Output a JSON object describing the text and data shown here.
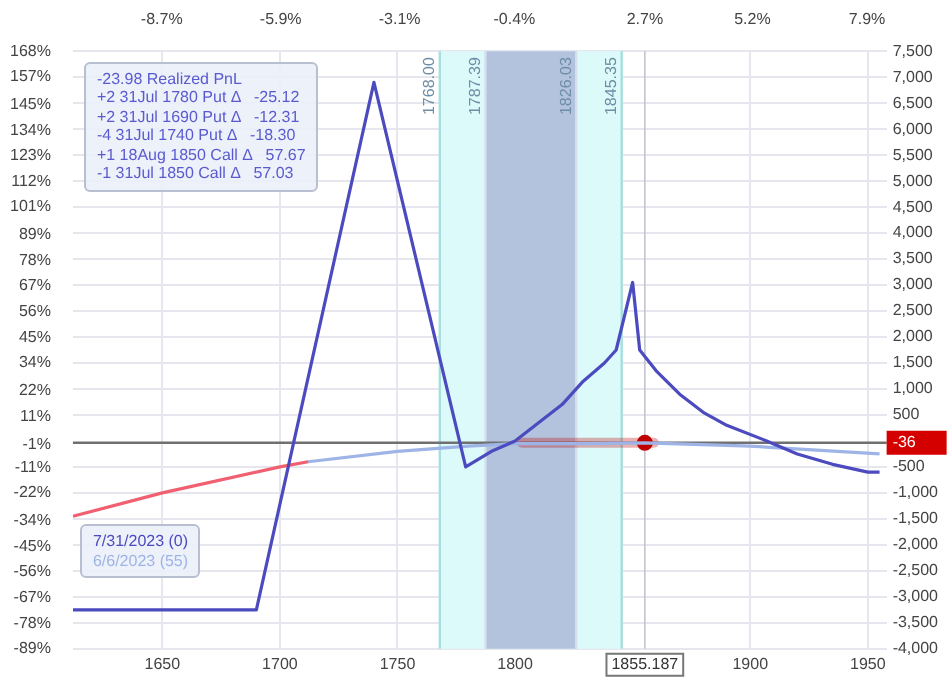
{
  "chart_data": {
    "type": "line",
    "annotations": [
      "-23.98 Realized PnL",
      "+2 31Jul 1780 Put Δ   -25.12",
      "+2 31Jul 1690 Put Δ   -12.31",
      "-4 31Jul 1740 Put Δ   -18.30",
      "+1 18Aug 1850 Call Δ   57.67",
      "-1 31Jul 1850 Call Δ   57.03"
    ],
    "series": [
      {
        "name": "7/31/2023 (0)",
        "color": "#4b4bbf",
        "axis": "y2",
        "x": [
          1612,
          1690,
          1740,
          1779,
          1790,
          1800,
          1810,
          1820,
          1829,
          1838,
          1843,
          1850,
          1853,
          1860,
          1870,
          1880,
          1890,
          1907,
          1920,
          1935,
          1950,
          1955
        ],
        "values": [
          -3250,
          -3250,
          6900,
          -500,
          -200,
          0,
          350,
          700,
          1150,
          1500,
          1750,
          3050,
          1750,
          1350,
          900,
          550,
          300,
          0,
          -250,
          -450,
          -600,
          -600
        ]
      },
      {
        "color": "#f06070",
        "axis": "y2",
        "x": [
          1612,
          1650,
          1700,
          1712
        ],
        "values": [
          -1450,
          -1000,
          -500,
          -400
        ]
      },
      {
        "name": "6/6/2023 (55)",
        "color": "#9fb4e6",
        "axis": "y2",
        "x": [
          1712,
          1750,
          1780,
          1800,
          1830,
          1855.187,
          1900,
          1955
        ],
        "values": [
          -400,
          -200,
          -100,
          -50,
          -50,
          -36,
          -100,
          -250
        ]
      },
      {
        "type": "scatter",
        "color": "#c00000",
        "axis": "y2",
        "x": [
          1855.187
        ],
        "values": [
          -36
        ],
        "xerrors": [
          [
            1803,
            1859
          ]
        ]
      }
    ],
    "xlim": [
      1612,
      1958
    ],
    "xticks": [
      1650,
      1700,
      1750,
      1800,
      1900,
      1950
    ],
    "x2lim": [
      -10.79,
      8.36
    ],
    "x2ticks": [
      {
        "value": -8.7,
        "label": "-8.7%"
      },
      {
        "value": -5.9,
        "label": "-5.9%"
      },
      {
        "value": -3.1,
        "label": "-3.1%"
      },
      {
        "value": -0.4,
        "label": "-0.4%"
      },
      {
        "value": 2.67,
        "label": "2.7%"
      },
      {
        "value": 5.2,
        "label": "5.2%"
      },
      {
        "value": 7.9,
        "label": "7.9%"
      }
    ],
    "ylim": [
      -89,
      168
    ],
    "yticks": [
      {
        "value": 168,
        "label": "168%"
      },
      {
        "value": 157,
        "label": "157%"
      },
      {
        "value": 145,
        "label": "145%"
      },
      {
        "value": 134,
        "label": "134%"
      },
      {
        "value": 123,
        "label": "123%"
      },
      {
        "value": 112,
        "label": "112%"
      },
      {
        "value": 101,
        "label": "101%"
      },
      {
        "value": 89,
        "label": "89%"
      },
      {
        "value": 78,
        "label": "78%"
      },
      {
        "value": 67,
        "label": "67%"
      },
      {
        "value": 56,
        "label": "56%"
      },
      {
        "value": 45,
        "label": "45%"
      },
      {
        "value": 34,
        "label": "34%"
      },
      {
        "value": 22,
        "label": "22%"
      },
      {
        "value": 11,
        "label": "11%"
      },
      {
        "value": -1,
        "label": "-1%"
      },
      {
        "value": -11,
        "label": "-11%"
      },
      {
        "value": -22,
        "label": "-22%"
      },
      {
        "value": -34,
        "label": "-34%"
      },
      {
        "value": -45,
        "label": "-45%"
      },
      {
        "value": -56,
        "label": "-56%"
      },
      {
        "value": -67,
        "label": "-67%"
      },
      {
        "value": -78,
        "label": "-78%"
      },
      {
        "value": -89,
        "label": "-89%"
      }
    ],
    "y2lim": [
      -4000,
      7500
    ],
    "y2ticks": [
      {
        "value": 7500,
        "label": "7,500"
      },
      {
        "value": 7000,
        "label": "7,000"
      },
      {
        "value": 6500,
        "label": "6,500"
      },
      {
        "value": 6000,
        "label": "6,000"
      },
      {
        "value": 5500,
        "label": "5,500"
      },
      {
        "value": 5000,
        "label": "5,000"
      },
      {
        "value": 4500,
        "label": "4,500"
      },
      {
        "value": 4000,
        "label": "4,000"
      },
      {
        "value": 3500,
        "label": "3,500"
      },
      {
        "value": 3000,
        "label": "3,000"
      },
      {
        "value": 2500,
        "label": "2,500"
      },
      {
        "value": 2000,
        "label": "2,000"
      },
      {
        "value": 1500,
        "label": "1,500"
      },
      {
        "value": 1000,
        "label": "1,000"
      },
      500,
      -500,
      {
        "value": -1000,
        "label": "-1,000"
      },
      {
        "value": -1500,
        "label": "-1,500"
      },
      {
        "value": -2000,
        "label": "-2,000"
      },
      {
        "value": -2500,
        "label": "-2,500"
      },
      {
        "value": -3000,
        "label": "-3,000"
      },
      {
        "value": -3500,
        "label": "-3,500"
      },
      {
        "value": -4000,
        "label": "-4,000"
      }
    ],
    "bands": [
      {
        "axis": "x",
        "from": 1768,
        "to": 1845.35,
        "color": "#dcfafa"
      },
      {
        "axis": "x",
        "from": 1787.39,
        "to": 1826.03,
        "color": "#b3c3dd"
      }
    ],
    "ref_lines": [
      {
        "axis": "x",
        "value": 1768,
        "label": "1768.00",
        "color": "#a8dede"
      },
      {
        "axis": "x",
        "value": 1787.39,
        "label": "1787.39",
        "color": "#d6e0ee"
      },
      {
        "axis": "x",
        "value": 1826.03,
        "label": "1826.03",
        "color": "#d6e0ee"
      },
      {
        "axis": "x",
        "value": 1845.35,
        "label": "1845.35",
        "color": "#a8dede"
      },
      {
        "axis": "x",
        "value": 1855.187,
        "label": "1855.187"
      },
      {
        "axis": "y2",
        "value": -36,
        "label": "-36",
        "color": "#707070"
      }
    ],
    "grid": true,
    "legend": "bottom left"
  }
}
